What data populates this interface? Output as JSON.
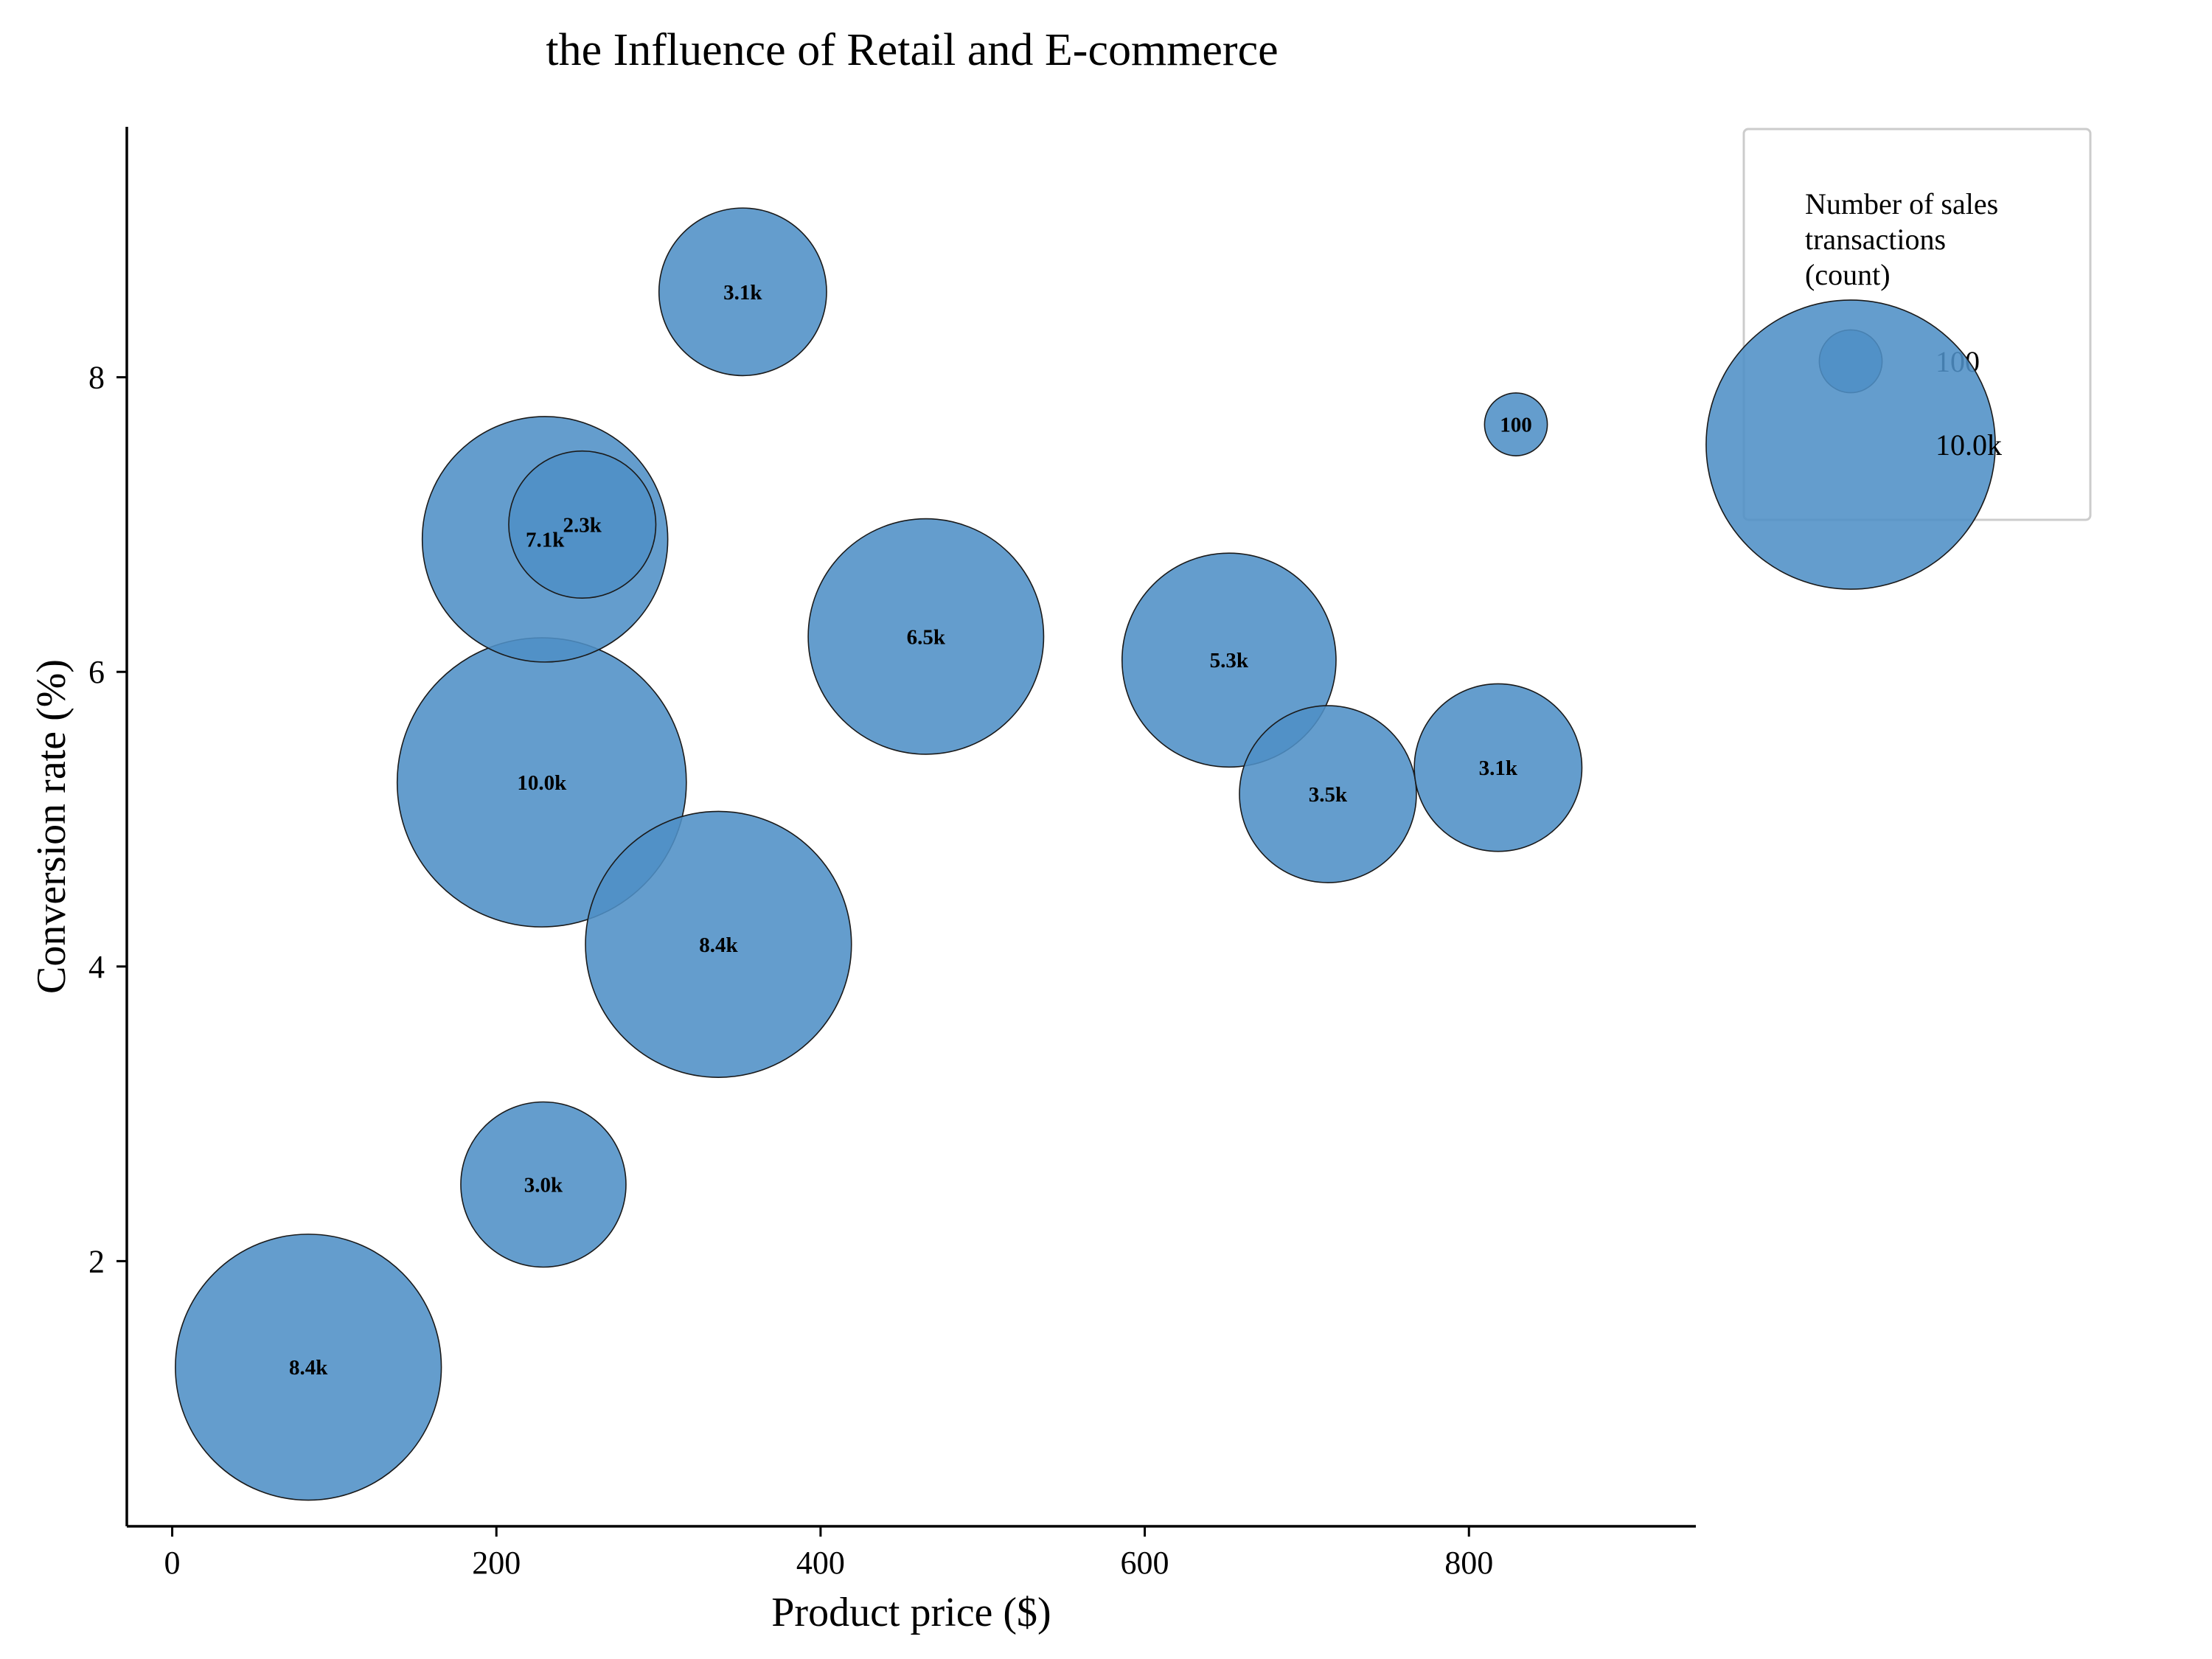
{
  "chart_data": {
    "type": "scatter",
    "title": "the Influence of Retail and E-commerce",
    "xlabel": "Product price ($)",
    "ylabel": "Conversion rate (%)",
    "xlim": [
      -28,
      940
    ],
    "ylim": [
      0.2,
      9.7
    ],
    "xticks": [
      0,
      200,
      400,
      600,
      800
    ],
    "yticks": [
      2,
      4,
      6,
      8
    ],
    "grid": false,
    "legend_position": "right-outside",
    "bubble_color": "#4f8fc6",
    "size_encoding": "Number of sales transactions (count)",
    "points": [
      {
        "x": 352,
        "y": 8.58,
        "size": 3100,
        "label": "3.1k"
      },
      {
        "x": 829,
        "y": 7.68,
        "size": 100,
        "label": "100"
      },
      {
        "x": 230,
        "y": 6.9,
        "size": 7100,
        "label": "7.1k"
      },
      {
        "x": 253,
        "y": 7.0,
        "size": 2300,
        "label": "2.3k"
      },
      {
        "x": 465,
        "y": 6.24,
        "size": 6500,
        "label": "6.5k"
      },
      {
        "x": 652,
        "y": 6.08,
        "size": 5300,
        "label": "5.3k"
      },
      {
        "x": 228,
        "y": 5.25,
        "size": 10000,
        "label": "10.0k"
      },
      {
        "x": 713,
        "y": 5.17,
        "size": 3500,
        "label": "3.5k"
      },
      {
        "x": 818,
        "y": 5.35,
        "size": 3100,
        "label": "3.1k"
      },
      {
        "x": 337,
        "y": 4.15,
        "size": 8400,
        "label": "8.4k"
      },
      {
        "x": 229,
        "y": 2.52,
        "size": 3000,
        "label": "3.0k"
      },
      {
        "x": 84,
        "y": 1.28,
        "size": 8400,
        "label": "8.4k"
      }
    ],
    "legend": {
      "title_lines": [
        "Number of sales",
        "transactions",
        "(count)"
      ],
      "entries": [
        {
          "size": 100,
          "label": "100"
        },
        {
          "size": 10000,
          "label": "10.0k"
        }
      ]
    }
  }
}
